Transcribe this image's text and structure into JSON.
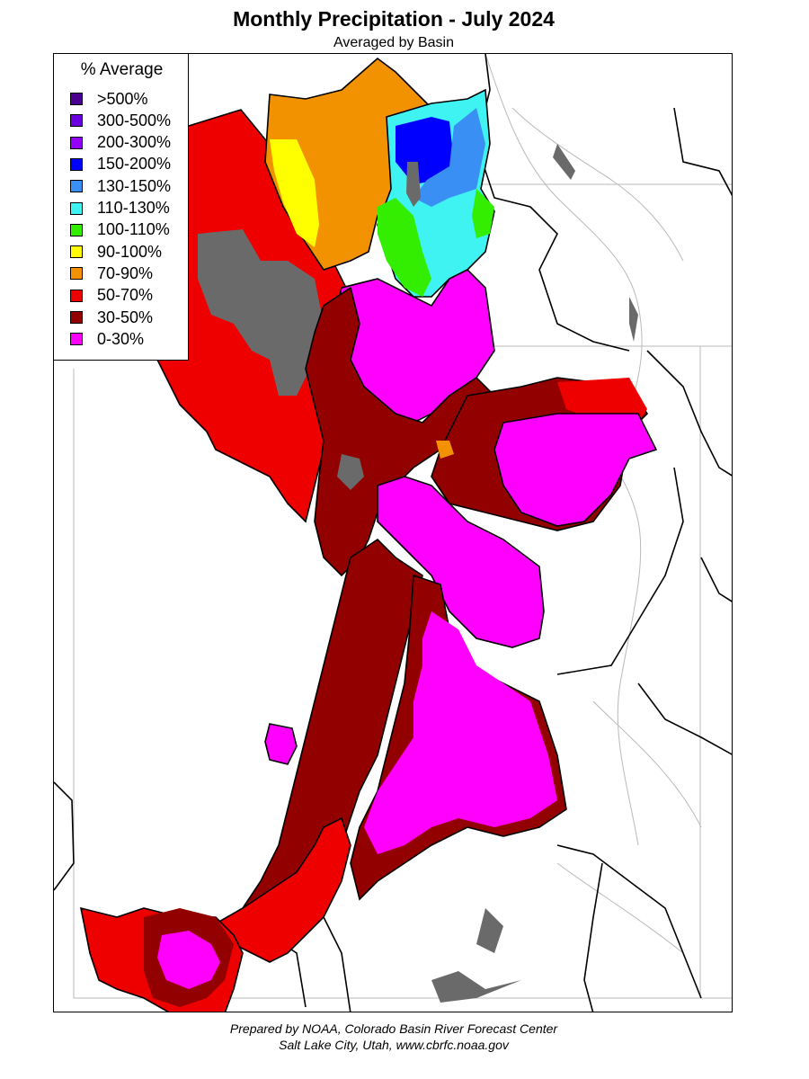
{
  "header": {
    "title": "Monthly Precipitation - July 2024",
    "subtitle": "Averaged by Basin"
  },
  "legend": {
    "title": "% Average",
    "items": [
      {
        "label": ">500%",
        "color": "#4b0091"
      },
      {
        "label": "300-500%",
        "color": "#6a00e0"
      },
      {
        "label": "200-300%",
        "color": "#9400ff"
      },
      {
        "label": "150-200%",
        "color": "#0000ff"
      },
      {
        "label": "130-150%",
        "color": "#3a8ff5"
      },
      {
        "label": "110-130%",
        "color": "#3ff3f3"
      },
      {
        "label": "100-110%",
        "color": "#33ee00"
      },
      {
        "label": "90-100%",
        "color": "#ffff00"
      },
      {
        "label": "70-90%",
        "color": "#f39200"
      },
      {
        "label": "50-70%",
        "color": "#ee0000"
      },
      {
        "label": "30-50%",
        "color": "#930000"
      },
      {
        "label": "0-30%",
        "color": "#ff00ff"
      }
    ]
  },
  "colors": {
    "no_data": "#6a6a6a"
  },
  "footer": {
    "line1": "Prepared by NOAA, Colorado Basin River Forecast Center",
    "line2": "Salt Lake City, Utah, www.cbrfc.noaa.gov"
  }
}
